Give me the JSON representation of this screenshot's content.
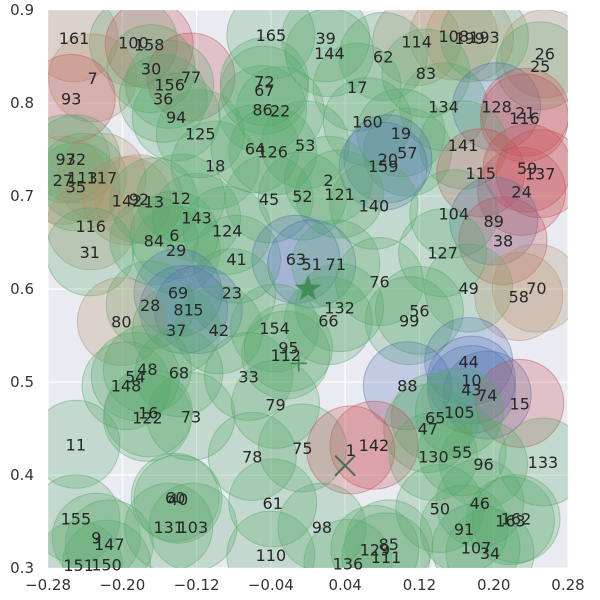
{
  "chart_data": {
    "type": "scatter",
    "title": "",
    "xlabel": "",
    "ylabel": "",
    "xlim": [
      -0.28,
      0.28
    ],
    "ylim": [
      0.3,
      0.9
    ],
    "xticks": [
      "−0.28",
      "−0.20",
      "−0.12",
      "−0.04",
      "0.04",
      "0.12",
      "0.20",
      "0.28"
    ],
    "yticks": [
      "0.3",
      "0.4",
      "0.5",
      "0.6",
      "0.7",
      "0.8",
      "0.9"
    ],
    "grid": true,
    "background": "#eaeaf2",
    "colors": {
      "green": "#55a868",
      "blue": "#4c72b0",
      "red": "#c44e52",
      "brown": "#b08f6a",
      "marker": "#3e8a52"
    },
    "markers": [
      {
        "kind": "star",
        "x": 0.0,
        "y": 0.6
      },
      {
        "kind": "plus",
        "x": -0.01,
        "y": 0.52
      },
      {
        "kind": "x",
        "x": 0.04,
        "y": 0.41
      }
    ],
    "points": [
      {
        "label": "161",
        "x": -0.252,
        "y": 0.87,
        "c": "brown"
      },
      {
        "label": "100",
        "x": -0.188,
        "y": 0.865,
        "c": "green"
      },
      {
        "label": "158",
        "x": -0.171,
        "y": 0.863,
        "c": "red"
      },
      {
        "label": "165",
        "x": -0.04,
        "y": 0.873,
        "c": "green"
      },
      {
        "label": "39",
        "x": 0.019,
        "y": 0.87,
        "c": "green"
      },
      {
        "label": "114",
        "x": 0.117,
        "y": 0.866,
        "c": "brown"
      },
      {
        "label": "108",
        "x": 0.157,
        "y": 0.872,
        "c": "brown"
      },
      {
        "label": "199",
        "x": 0.174,
        "y": 0.87,
        "c": "brown"
      },
      {
        "label": "193",
        "x": 0.19,
        "y": 0.871,
        "c": "green"
      },
      {
        "label": "144",
        "x": 0.023,
        "y": 0.854,
        "c": "green"
      },
      {
        "label": "62",
        "x": 0.081,
        "y": 0.85,
        "c": "green"
      },
      {
        "label": "26",
        "x": 0.255,
        "y": 0.853,
        "c": "brown"
      },
      {
        "label": "25",
        "x": 0.25,
        "y": 0.84,
        "c": "green"
      },
      {
        "label": "30",
        "x": -0.169,
        "y": 0.837,
        "c": "green"
      },
      {
        "label": "7",
        "x": -0.232,
        "y": 0.827,
        "c": "brown"
      },
      {
        "label": "77",
        "x": -0.126,
        "y": 0.828,
        "c": "red"
      },
      {
        "label": "156",
        "x": -0.149,
        "y": 0.82,
        "c": "green"
      },
      {
        "label": "83",
        "x": 0.127,
        "y": 0.832,
        "c": "green"
      },
      {
        "label": "72",
        "x": -0.047,
        "y": 0.823,
        "c": "green"
      },
      {
        "label": "67",
        "x": -0.047,
        "y": 0.814,
        "c": "green"
      },
      {
        "label": "17",
        "x": 0.053,
        "y": 0.817,
        "c": "green"
      },
      {
        "label": "93",
        "x": -0.255,
        "y": 0.805,
        "c": "red"
      },
      {
        "label": "36",
        "x": -0.156,
        "y": 0.805,
        "c": "green"
      },
      {
        "label": "86",
        "x": -0.049,
        "y": 0.793,
        "c": "green"
      },
      {
        "label": "22",
        "x": -0.03,
        "y": 0.792,
        "c": "green"
      },
      {
        "label": "134",
        "x": 0.146,
        "y": 0.796,
        "c": "green"
      },
      {
        "label": "128",
        "x": 0.203,
        "y": 0.796,
        "c": "blue"
      },
      {
        "label": "21",
        "x": 0.234,
        "y": 0.79,
        "c": "red"
      },
      {
        "label": "116",
        "x": 0.233,
        "y": 0.784,
        "c": "red"
      },
      {
        "label": "94",
        "x": -0.142,
        "y": 0.785,
        "c": "green"
      },
      {
        "label": "160",
        "x": 0.064,
        "y": 0.78,
        "c": "green"
      },
      {
        "label": "125",
        "x": -0.116,
        "y": 0.767,
        "c": "green"
      },
      {
        "label": "19",
        "x": 0.1,
        "y": 0.768,
        "c": "green"
      },
      {
        "label": "141",
        "x": 0.167,
        "y": 0.755,
        "c": "green"
      },
      {
        "label": "53",
        "x": -0.003,
        "y": 0.755,
        "c": "green"
      },
      {
        "label": "64",
        "x": -0.057,
        "y": 0.751,
        "c": "green"
      },
      {
        "label": "126",
        "x": -0.038,
        "y": 0.748,
        "c": "green"
      },
      {
        "label": "57",
        "x": 0.107,
        "y": 0.747,
        "c": "green"
      },
      {
        "label": "97",
        "x": -0.261,
        "y": 0.74,
        "c": "green"
      },
      {
        "label": "32",
        "x": -0.25,
        "y": 0.74,
        "c": "green"
      },
      {
        "label": "20",
        "x": 0.086,
        "y": 0.74,
        "c": "blue"
      },
      {
        "label": "18",
        "x": -0.1,
        "y": 0.733,
        "c": "green"
      },
      {
        "label": "159",
        "x": 0.081,
        "y": 0.732,
        "c": "blue"
      },
      {
        "label": "27",
        "x": -0.264,
        "y": 0.717,
        "c": "brown"
      },
      {
        "label": "113",
        "x": -0.243,
        "y": 0.72,
        "c": "green"
      },
      {
        "label": "117",
        "x": -0.222,
        "y": 0.72,
        "c": "brown"
      },
      {
        "label": "115",
        "x": 0.186,
        "y": 0.725,
        "c": "red"
      },
      {
        "label": "59",
        "x": 0.236,
        "y": 0.73,
        "c": "red"
      },
      {
        "label": "137",
        "x": 0.25,
        "y": 0.724,
        "c": "red"
      },
      {
        "label": "35",
        "x": -0.25,
        "y": 0.71,
        "c": "green"
      },
      {
        "label": "2",
        "x": 0.022,
        "y": 0.717,
        "c": "green"
      },
      {
        "label": "24",
        "x": 0.23,
        "y": 0.705,
        "c": "red"
      },
      {
        "label": "52",
        "x": -0.006,
        "y": 0.7,
        "c": "green"
      },
      {
        "label": "121",
        "x": 0.034,
        "y": 0.702,
        "c": "green"
      },
      {
        "label": "45",
        "x": -0.042,
        "y": 0.697,
        "c": "green"
      },
      {
        "label": "142",
        "x": -0.195,
        "y": 0.695,
        "c": "brown"
      },
      {
        "label": "92",
        "x": -0.182,
        "y": 0.697,
        "c": "brown"
      },
      {
        "label": "13",
        "x": -0.166,
        "y": 0.694,
        "c": "green"
      },
      {
        "label": "12",
        "x": -0.137,
        "y": 0.698,
        "c": "green"
      },
      {
        "label": "140",
        "x": 0.071,
        "y": 0.69,
        "c": "green"
      },
      {
        "label": "104",
        "x": 0.157,
        "y": 0.681,
        "c": "green"
      },
      {
        "label": "143",
        "x": -0.12,
        "y": 0.677,
        "c": "green"
      },
      {
        "label": "89",
        "x": 0.2,
        "y": 0.673,
        "c": "blue"
      },
      {
        "label": "116",
        "x": -0.234,
        "y": 0.668,
        "c": "brown"
      },
      {
        "label": "124",
        "x": -0.087,
        "y": 0.663,
        "c": "green"
      },
      {
        "label": "6",
        "x": -0.144,
        "y": 0.658,
        "c": "green"
      },
      {
        "label": "84",
        "x": -0.166,
        "y": 0.652,
        "c": "green"
      },
      {
        "label": "38",
        "x": 0.21,
        "y": 0.652,
        "c": "red"
      },
      {
        "label": "29",
        "x": -0.142,
        "y": 0.642,
        "c": "green"
      },
      {
        "label": "31",
        "x": -0.235,
        "y": 0.64,
        "c": "green"
      },
      {
        "label": "127",
        "x": 0.145,
        "y": 0.639,
        "c": "green"
      },
      {
        "label": "41",
        "x": -0.077,
        "y": 0.632,
        "c": "green"
      },
      {
        "label": "63",
        "x": -0.013,
        "y": 0.632,
        "c": "blue"
      },
      {
        "label": "51",
        "x": 0.004,
        "y": 0.627,
        "c": "blue"
      },
      {
        "label": "71",
        "x": 0.03,
        "y": 0.627,
        "c": "green"
      },
      {
        "label": "76",
        "x": 0.077,
        "y": 0.608,
        "c": "green"
      },
      {
        "label": "49",
        "x": 0.173,
        "y": 0.601,
        "c": "green"
      },
      {
        "label": "70",
        "x": 0.246,
        "y": 0.601,
        "c": "brown"
      },
      {
        "label": "69",
        "x": -0.14,
        "y": 0.596,
        "c": "blue"
      },
      {
        "label": "23",
        "x": -0.082,
        "y": 0.596,
        "c": "green"
      },
      {
        "label": "58",
        "x": 0.227,
        "y": 0.592,
        "c": "brown"
      },
      {
        "label": "28",
        "x": -0.17,
        "y": 0.583,
        "c": "green"
      },
      {
        "label": "81",
        "x": -0.134,
        "y": 0.578,
        "c": "blue"
      },
      {
        "label": "5",
        "x": -0.118,
        "y": 0.578,
        "c": "blue"
      },
      {
        "label": "132",
        "x": 0.034,
        "y": 0.58,
        "c": "green"
      },
      {
        "label": "56",
        "x": 0.12,
        "y": 0.577,
        "c": "green"
      },
      {
        "label": "80",
        "x": -0.201,
        "y": 0.565,
        "c": "brown"
      },
      {
        "label": "66",
        "x": 0.022,
        "y": 0.566,
        "c": "green"
      },
      {
        "label": "99",
        "x": 0.109,
        "y": 0.566,
        "c": "green"
      },
      {
        "label": "37",
        "x": -0.142,
        "y": 0.556,
        "c": "green"
      },
      {
        "label": "42",
        "x": -0.096,
        "y": 0.556,
        "c": "green"
      },
      {
        "label": "154",
        "x": -0.036,
        "y": 0.558,
        "c": "green"
      },
      {
        "label": "95",
        "x": -0.021,
        "y": 0.537,
        "c": "green"
      },
      {
        "label": "112",
        "x": -0.024,
        "y": 0.529,
        "c": "green"
      },
      {
        "label": "44",
        "x": 0.173,
        "y": 0.522,
        "c": "blue"
      },
      {
        "label": "48",
        "x": -0.173,
        "y": 0.514,
        "c": "green"
      },
      {
        "label": "68",
        "x": -0.139,
        "y": 0.51,
        "c": "green"
      },
      {
        "label": "54",
        "x": -0.186,
        "y": 0.506,
        "c": "green"
      },
      {
        "label": "33",
        "x": -0.064,
        "y": 0.506,
        "c": "green"
      },
      {
        "label": "10",
        "x": 0.176,
        "y": 0.502,
        "c": "blue"
      },
      {
        "label": "148",
        "x": -0.196,
        "y": 0.496,
        "c": "green"
      },
      {
        "label": "88",
        "x": 0.107,
        "y": 0.496,
        "c": "blue"
      },
      {
        "label": "43",
        "x": 0.176,
        "y": 0.492,
        "c": "blue"
      },
      {
        "label": "74",
        "x": 0.193,
        "y": 0.486,
        "c": "blue"
      },
      {
        "label": "15",
        "x": 0.228,
        "y": 0.477,
        "c": "red"
      },
      {
        "label": "79",
        "x": -0.035,
        "y": 0.476,
        "c": "green"
      },
      {
        "label": "105",
        "x": 0.163,
        "y": 0.468,
        "c": "green"
      },
      {
        "label": "16",
        "x": -0.172,
        "y": 0.467,
        "c": "green"
      },
      {
        "label": "122",
        "x": -0.173,
        "y": 0.462,
        "c": "green"
      },
      {
        "label": "73",
        "x": -0.126,
        "y": 0.463,
        "c": "green"
      },
      {
        "label": "65",
        "x": 0.137,
        "y": 0.462,
        "c": "green"
      },
      {
        "label": "47",
        "x": 0.129,
        "y": 0.45,
        "c": "green"
      },
      {
        "label": "11",
        "x": -0.25,
        "y": 0.433,
        "c": "green"
      },
      {
        "label": "142",
        "x": 0.071,
        "y": 0.432,
        "c": "red"
      },
      {
        "label": "75",
        "x": -0.006,
        "y": 0.429,
        "c": "green"
      },
      {
        "label": "1",
        "x": 0.046,
        "y": 0.427,
        "c": "red"
      },
      {
        "label": "55",
        "x": 0.166,
        "y": 0.425,
        "c": "green"
      },
      {
        "label": "130",
        "x": 0.135,
        "y": 0.42,
        "c": "green"
      },
      {
        "label": "78",
        "x": -0.06,
        "y": 0.42,
        "c": "green"
      },
      {
        "label": "96",
        "x": 0.189,
        "y": 0.412,
        "c": "green"
      },
      {
        "label": "133",
        "x": 0.253,
        "y": 0.414,
        "c": "green"
      },
      {
        "label": "60",
        "x": -0.143,
        "y": 0.376,
        "c": "green"
      },
      {
        "label": "40",
        "x": -0.14,
        "y": 0.374,
        "c": "green"
      },
      {
        "label": "46",
        "x": 0.185,
        "y": 0.37,
        "c": "green"
      },
      {
        "label": "61",
        "x": -0.038,
        "y": 0.37,
        "c": "green"
      },
      {
        "label": "50",
        "x": 0.142,
        "y": 0.364,
        "c": "green"
      },
      {
        "label": "155",
        "x": -0.25,
        "y": 0.353,
        "c": "green"
      },
      {
        "label": "163",
        "x": 0.218,
        "y": 0.351,
        "c": "green"
      },
      {
        "label": "162",
        "x": 0.224,
        "y": 0.353,
        "c": "green"
      },
      {
        "label": "131",
        "x": -0.15,
        "y": 0.344,
        "c": "green"
      },
      {
        "label": "103",
        "x": -0.124,
        "y": 0.344,
        "c": "green"
      },
      {
        "label": "98",
        "x": 0.015,
        "y": 0.344,
        "c": "green"
      },
      {
        "label": "91",
        "x": 0.168,
        "y": 0.342,
        "c": "green"
      },
      {
        "label": "9",
        "x": -0.228,
        "y": 0.333,
        "c": "green"
      },
      {
        "label": "147",
        "x": -0.214,
        "y": 0.326,
        "c": "green"
      },
      {
        "label": "85",
        "x": 0.087,
        "y": 0.326,
        "c": "green"
      },
      {
        "label": "129",
        "x": 0.072,
        "y": 0.32,
        "c": "green"
      },
      {
        "label": "107",
        "x": 0.181,
        "y": 0.322,
        "c": "green"
      },
      {
        "label": "34",
        "x": 0.196,
        "y": 0.316,
        "c": "green"
      },
      {
        "label": "110",
        "x": -0.04,
        "y": 0.314,
        "c": "green"
      },
      {
        "label": "111",
        "x": 0.084,
        "y": 0.312,
        "c": "green"
      },
      {
        "label": "136",
        "x": 0.043,
        "y": 0.305,
        "c": "green"
      },
      {
        "label": "151",
        "x": -0.247,
        "y": 0.303,
        "c": "green"
      },
      {
        "label": "150",
        "x": -0.217,
        "y": 0.304,
        "c": "green"
      }
    ]
  }
}
